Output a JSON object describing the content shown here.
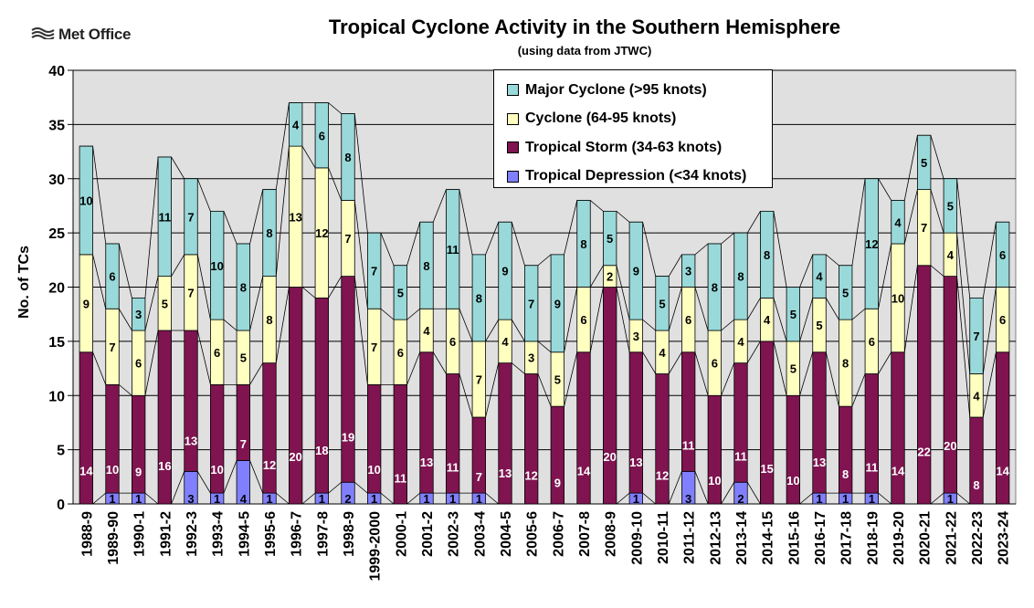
{
  "header": {
    "logo_text": "Met Office",
    "logo_icon": "met-office-wave-icon"
  },
  "chart_data": {
    "type": "bar",
    "stacked": true,
    "title": "Tropical Cyclone Activity in the Southern Hemisphere",
    "subtitle": "(using data from JTWC)",
    "xlabel": "",
    "ylabel": "No. of TCs",
    "ylim": [
      0,
      40
    ],
    "yticks": [
      0,
      5,
      10,
      15,
      20,
      25,
      30,
      35,
      40
    ],
    "grid": true,
    "legend_position": "top-right",
    "categories": [
      "1988-9",
      "1989-90",
      "1990-1",
      "1991-2",
      "1992-3",
      "1993-4",
      "1994-5",
      "1995-6",
      "1996-7",
      "1997-8",
      "1998-9",
      "1999-2000",
      "2000-1",
      "2001-2",
      "2002-3",
      "2003-4",
      "2004-5",
      "2005-6",
      "2006-7",
      "2007-8",
      "2008-9",
      "2009-10",
      "2010-11",
      "2011-12",
      "2012-13",
      "2013-14",
      "2014-15",
      "2015-16",
      "2016-17",
      "2017-18",
      "2018-19",
      "2019-20",
      "2020-21",
      "2021-22",
      "2022-23",
      "2023-24"
    ],
    "series": [
      {
        "name": "Tropical Depression (<34 knots)",
        "color": "#8080ff",
        "values": [
          0,
          1,
          1,
          0,
          3,
          1,
          4,
          1,
          0,
          1,
          2,
          1,
          0,
          1,
          1,
          1,
          0,
          0,
          0,
          0,
          0,
          1,
          0,
          3,
          0,
          2,
          0,
          0,
          1,
          1,
          1,
          0,
          0,
          1,
          0,
          0
        ]
      },
      {
        "name": "Tropical Storm (34-63 knots)",
        "color": "#7f1450",
        "values": [
          14,
          10,
          9,
          16,
          13,
          10,
          7,
          12,
          20,
          18,
          19,
          10,
          11,
          13,
          11,
          7,
          13,
          12,
          9,
          14,
          20,
          13,
          12,
          11,
          10,
          11,
          15,
          10,
          13,
          8,
          11,
          14,
          22,
          20,
          8,
          14
        ]
      },
      {
        "name": "Cyclone (64-95 knots)",
        "color": "#ffffc0",
        "values": [
          9,
          7,
          6,
          5,
          7,
          6,
          5,
          8,
          13,
          12,
          7,
          7,
          6,
          4,
          6,
          7,
          4,
          3,
          5,
          6,
          2,
          3,
          4,
          6,
          6,
          4,
          4,
          5,
          5,
          8,
          6,
          10,
          7,
          4,
          4,
          6
        ]
      },
      {
        "name": "Major Cyclone (>95 knots)",
        "color": "#99d9d9",
        "values": [
          10,
          6,
          3,
          11,
          7,
          10,
          8,
          8,
          4,
          6,
          8,
          7,
          5,
          8,
          11,
          8,
          9,
          7,
          9,
          8,
          5,
          9,
          5,
          3,
          8,
          8,
          8,
          5,
          4,
          5,
          12,
          4,
          5,
          5,
          7,
          6
        ]
      }
    ],
    "legend_order": [
      3,
      2,
      1,
      0
    ]
  }
}
